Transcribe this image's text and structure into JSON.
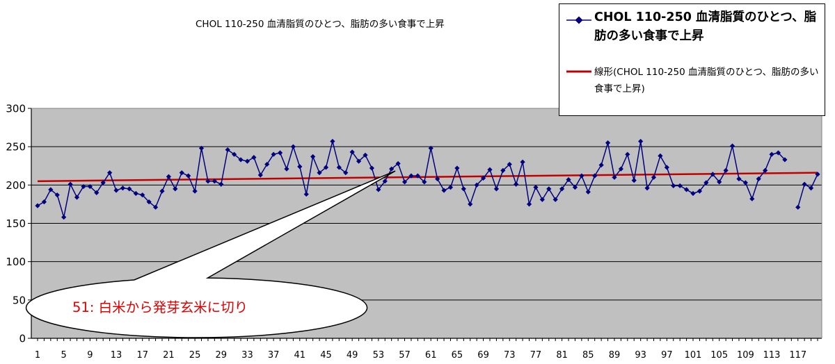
{
  "chart_data": {
    "type": "line",
    "title": "CHOL 110-250 血清脂質のひとつ、脂肪の多い食事で上昇",
    "xlabel": "",
    "ylabel": "",
    "ylim": [
      0,
      300
    ],
    "yticks": [
      0,
      50,
      100,
      150,
      200,
      250,
      300
    ],
    "xlim": [
      1,
      120
    ],
    "xtick_labels": [
      "1",
      "5",
      "9",
      "13",
      "17",
      "21",
      "25",
      "29",
      "33",
      "37",
      "41",
      "45",
      "49",
      "53",
      "57",
      "61",
      "65",
      "69",
      "73",
      "77",
      "81",
      "85",
      "89",
      "93",
      "97",
      "101",
      "105",
      "109",
      "113",
      "117"
    ],
    "grid": "horizontal",
    "legend_position": "top-right",
    "series": [
      {
        "name": "CHOL 110-250 血清脂質のひとつ、脂肪の多い食事で上昇",
        "color": "#000080",
        "marker": "diamond",
        "x": [
          1,
          2,
          3,
          4,
          5,
          6,
          7,
          8,
          9,
          10,
          11,
          12,
          13,
          14,
          15,
          16,
          17,
          18,
          19,
          20,
          21,
          22,
          23,
          24,
          25,
          26,
          27,
          28,
          29,
          30,
          31,
          32,
          33,
          34,
          35,
          36,
          37,
          38,
          39,
          40,
          41,
          42,
          43,
          44,
          45,
          46,
          47,
          48,
          49,
          50,
          51,
          52,
          53,
          54,
          55,
          56,
          57,
          58,
          59,
          60,
          61,
          62,
          63,
          64,
          65,
          66,
          67,
          68,
          69,
          70,
          71,
          72,
          73,
          74,
          75,
          76,
          77,
          78,
          79,
          80,
          81,
          82,
          83,
          84,
          85,
          86,
          87,
          88,
          89,
          90,
          91,
          92,
          93,
          94,
          95,
          96,
          97,
          98,
          99,
          100,
          101,
          102,
          103,
          104,
          105,
          106,
          107,
          108,
          109,
          110,
          111,
          112,
          113,
          114,
          115,
          116,
          117,
          118,
          119,
          120
        ],
        "values": [
          173,
          178,
          194,
          187,
          158,
          201,
          184,
          198,
          198,
          190,
          203,
          216,
          193,
          196,
          195,
          189,
          187,
          178,
          171,
          192,
          211,
          195,
          216,
          212,
          192,
          248,
          205,
          205,
          201,
          246,
          240,
          233,
          231,
          236,
          213,
          227,
          240,
          242,
          221,
          250,
          224,
          188,
          237,
          216,
          223,
          257,
          223,
          216,
          243,
          231,
          239,
          222,
          194,
          205,
          221,
          228,
          204,
          212,
          212,
          204,
          248,
          208,
          193,
          197,
          222,
          195,
          175,
          200,
          209,
          220,
          195,
          219,
          227,
          201,
          230,
          175,
          197,
          181,
          195,
          181,
          195,
          207,
          197,
          212,
          191,
          212,
          226,
          255,
          210,
          221,
          240,
          206,
          257,
          196,
          210,
          238,
          223,
          199,
          199,
          194,
          189,
          192,
          203,
          214,
          204,
          219,
          251,
          208,
          203,
          182,
          208,
          219,
          240,
          242,
          233,
          null,
          171,
          201,
          196,
          214
        ]
      },
      {
        "name": "線形(CHOL 110-250 血清脂質のひとつ、脂肪の多い食事で上昇)",
        "color": "#c00000",
        "type": "trendline",
        "x": [
          1,
          120
        ],
        "values": [
          205,
          216
        ]
      }
    ],
    "annotations": [
      {
        "text": "51: 白米から発芽玄米に切り",
        "shape": "callout",
        "color": "#e00000",
        "points_to_x": 56,
        "points_to_y": 222
      }
    ]
  },
  "legend": {
    "series1_label": "CHOL 110-250 血清脂質のひとつ、脂肪の多い食事で上昇",
    "series2_label": "線形(CHOL 110-250 血清脂質のひとつ、脂肪の多い食事で上昇)"
  },
  "colors": {
    "plot_bg": "#c0c0c0",
    "series": "#000080",
    "trend": "#c00000",
    "annotation_text": "#e00000"
  }
}
